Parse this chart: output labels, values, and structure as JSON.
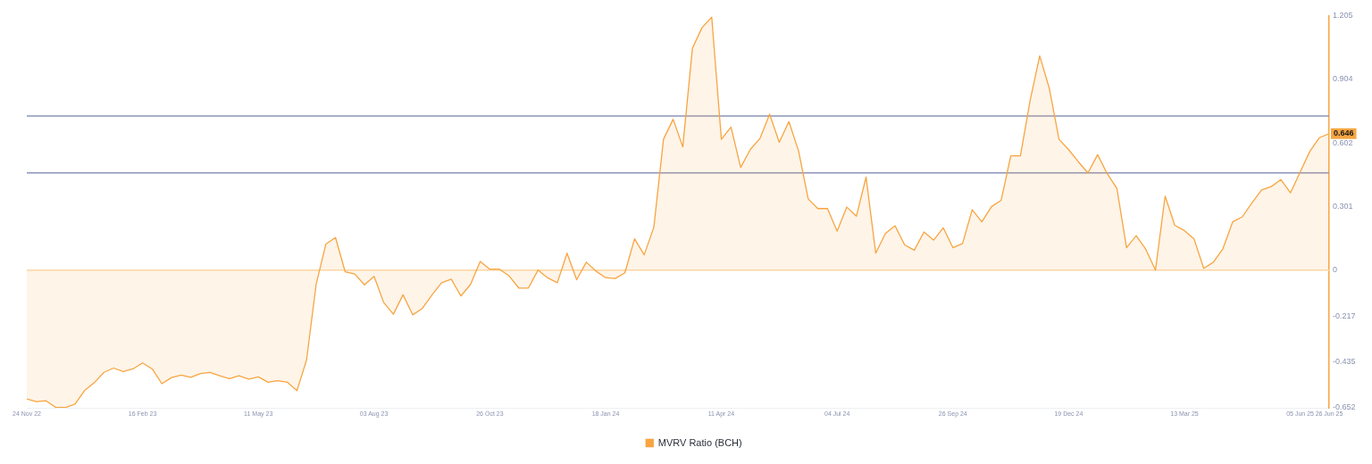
{
  "chart_data": {
    "type": "area",
    "legend": "bottom",
    "grid": false,
    "marker": "none",
    "line_style": "solid",
    "x": [
      "2022-11-24",
      "2022-12-01",
      "2022-12-08",
      "2022-12-15",
      "2022-12-22",
      "2022-12-29",
      "2023-01-05",
      "2023-01-12",
      "2023-01-19",
      "2023-01-26",
      "2023-02-02",
      "2023-02-09",
      "2023-02-16",
      "2023-02-23",
      "2023-03-02",
      "2023-03-09",
      "2023-03-16",
      "2023-03-23",
      "2023-03-30",
      "2023-04-06",
      "2023-04-13",
      "2023-04-20",
      "2023-04-27",
      "2023-05-04",
      "2023-05-11",
      "2023-05-18",
      "2023-05-25",
      "2023-06-01",
      "2023-06-08",
      "2023-06-15",
      "2023-06-22",
      "2023-06-29",
      "2023-07-06",
      "2023-07-13",
      "2023-07-20",
      "2023-07-27",
      "2023-08-03",
      "2023-08-10",
      "2023-08-17",
      "2023-08-24",
      "2023-08-31",
      "2023-09-07",
      "2023-09-14",
      "2023-09-21",
      "2023-09-28",
      "2023-10-05",
      "2023-10-12",
      "2023-10-19",
      "2023-10-26",
      "2023-11-02",
      "2023-11-09",
      "2023-11-16",
      "2023-11-23",
      "2023-11-30",
      "2023-12-07",
      "2023-12-14",
      "2023-12-21",
      "2023-12-28",
      "2024-01-04",
      "2024-01-11",
      "2024-01-18",
      "2024-01-25",
      "2024-02-01",
      "2024-02-08",
      "2024-02-15",
      "2024-02-22",
      "2024-02-29",
      "2024-03-07",
      "2024-03-14",
      "2024-03-21",
      "2024-03-28",
      "2024-04-04",
      "2024-04-11",
      "2024-04-18",
      "2024-04-25",
      "2024-05-02",
      "2024-05-09",
      "2024-05-16",
      "2024-05-23",
      "2024-05-30",
      "2024-06-06",
      "2024-06-13",
      "2024-06-20",
      "2024-06-27",
      "2024-07-04",
      "2024-07-11",
      "2024-07-18",
      "2024-07-25",
      "2024-08-01",
      "2024-08-08",
      "2024-08-15",
      "2024-08-22",
      "2024-08-29",
      "2024-09-05",
      "2024-09-12",
      "2024-09-19",
      "2024-09-26",
      "2024-10-03",
      "2024-10-10",
      "2024-10-17",
      "2024-10-24",
      "2024-10-31",
      "2024-11-07",
      "2024-11-14",
      "2024-11-21",
      "2024-11-28",
      "2024-12-05",
      "2024-12-12",
      "2024-12-19",
      "2024-12-26",
      "2025-01-02",
      "2025-01-09",
      "2025-01-16",
      "2025-01-23",
      "2025-01-30",
      "2025-02-06",
      "2025-02-13",
      "2025-02-20",
      "2025-02-27",
      "2025-03-06",
      "2025-03-13",
      "2025-03-20",
      "2025-03-27",
      "2025-04-03",
      "2025-04-10",
      "2025-04-17",
      "2025-04-24",
      "2025-05-01",
      "2025-05-08",
      "2025-05-15",
      "2025-05-22",
      "2025-05-29",
      "2025-06-05",
      "2025-06-12",
      "2025-06-19",
      "2025-06-26"
    ],
    "series": [
      {
        "name": "MVRV Ratio (BCH)",
        "color": "#f7a541",
        "values": [
          -0.61,
          -0.623,
          -0.619,
          -0.65,
          -0.651,
          -0.635,
          -0.57,
          -0.533,
          -0.484,
          -0.464,
          -0.48,
          -0.468,
          -0.44,
          -0.468,
          -0.538,
          -0.509,
          -0.497,
          -0.508,
          -0.49,
          -0.485,
          -0.5,
          -0.514,
          -0.5,
          -0.516,
          -0.506,
          -0.531,
          -0.524,
          -0.531,
          -0.571,
          -0.426,
          -0.066,
          0.123,
          0.154,
          -0.008,
          -0.019,
          -0.07,
          -0.03,
          -0.154,
          -0.209,
          -0.117,
          -0.212,
          -0.182,
          -0.118,
          -0.06,
          -0.043,
          -0.123,
          -0.068,
          0.041,
          0.004,
          0.004,
          -0.028,
          -0.085,
          -0.085,
          0,
          -0.037,
          -0.06,
          0.08,
          -0.046,
          0.037,
          -0.005,
          -0.036,
          -0.04,
          -0.013,
          0.148,
          0.072,
          0.203,
          0.619,
          0.714,
          0.583,
          1.05,
          1.148,
          1.197,
          0.619,
          0.677,
          0.486,
          0.571,
          0.623,
          0.738,
          0.605,
          0.703,
          0.564,
          0.337,
          0.291,
          0.291,
          0.184,
          0.298,
          0.255,
          0.44,
          0.08,
          0.173,
          0.21,
          0.119,
          0.094,
          0.18,
          0.142,
          0.2,
          0.106,
          0.126,
          0.285,
          0.228,
          0.3,
          0.33,
          0.541,
          0.541,
          0.802,
          1.014,
          0.859,
          0.619,
          0.57,
          0.513,
          0.46,
          0.546,
          0.456,
          0.387,
          0.106,
          0.163,
          0.098,
          0,
          0.35,
          0.212,
          0.187,
          0.147,
          0.008,
          0.037,
          0.102,
          0.228,
          0.252,
          0.318,
          0.379,
          0.395,
          0.428,
          0.366,
          0.464,
          0.562,
          0.627,
          0.646
        ]
      }
    ],
    "xlim": [
      "2022-11-24",
      "2025-06-26"
    ],
    "xticks": [
      {
        "value": "2022-11-24",
        "label": "24 Nov 22"
      },
      {
        "value": "2023-02-16",
        "label": "16 Feb 23"
      },
      {
        "value": "2023-05-11",
        "label": "11 May 23"
      },
      {
        "value": "2023-08-03",
        "label": "03 Aug 23"
      },
      {
        "value": "2023-10-26",
        "label": "26 Oct 23"
      },
      {
        "value": "2024-01-18",
        "label": "18 Jan 24"
      },
      {
        "value": "2024-04-11",
        "label": "11 Apr 24"
      },
      {
        "value": "2024-07-04",
        "label": "04 Jul 24"
      },
      {
        "value": "2024-09-26",
        "label": "26 Sep 24"
      },
      {
        "value": "2024-12-19",
        "label": "19 Dec 24"
      },
      {
        "value": "2025-03-13",
        "label": "13 Mar 25"
      },
      {
        "value": "2025-06-05",
        "label": "05 Jun 25"
      },
      {
        "value": "2025-06-26",
        "label": "26 Jun 25"
      }
    ],
    "ylim": [
      -0.652,
      1.205
    ],
    "yticks": [
      -0.652,
      -0.435,
      -0.217,
      0,
      0.301,
      0.602,
      0.904,
      1.205
    ],
    "ref_lines": [
      {
        "axis": "y",
        "value": 0.729,
        "color": "#8e94b8"
      },
      {
        "axis": "y",
        "value": 0.46,
        "color": "#8e94b8"
      },
      {
        "axis": "y",
        "value": 0,
        "color": "#fcd9a8"
      }
    ],
    "annotations": [
      {
        "text": "0.646",
        "x": "2025-06-26",
        "y": 0.646
      }
    ]
  }
}
